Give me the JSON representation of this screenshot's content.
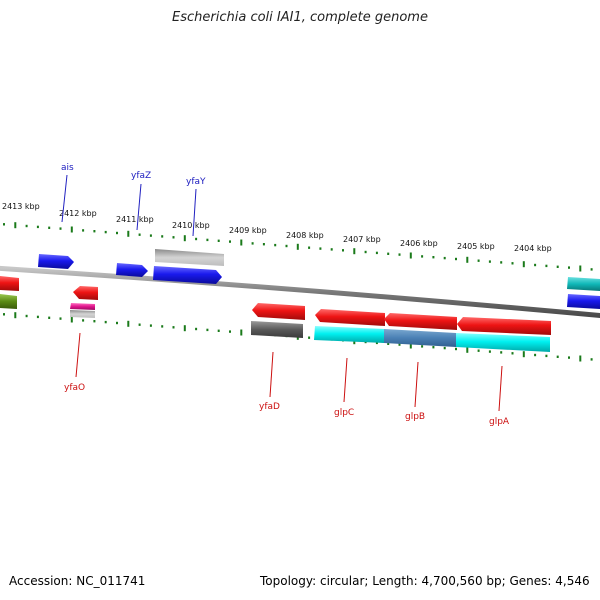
{
  "title": "Escherichia coli IAI1, complete genome",
  "footer": {
    "accession": "Accession: NC_011741",
    "topology": "Topology: circular; Length: 4,700,560 bp; Genes: 4,546"
  },
  "ticks": [
    "2413 kbp",
    "2412 kbp",
    "2411 kbp",
    "2410 kbp",
    "2409 kbp",
    "2408 kbp",
    "2407 kbp",
    "2406 kbp",
    "2405 kbp",
    "2404 kbp"
  ],
  "top_labels": [
    "ais",
    "yfaZ",
    "yfaY"
  ],
  "bottom_labels": [
    "yfaO",
    "yfaD",
    "glpC",
    "glpB",
    "glpA"
  ],
  "colors": {
    "forward_gene": "#1414e6",
    "reverse_gene": "#e81414",
    "feature_gray": "#bdbdbd",
    "feature_cyan": "#00f0f0",
    "feature_teal": "#10b8b8",
    "feature_olive": "#5a8a14",
    "feature_magenta": "#e0148c",
    "tick_green": "#1a7a1a",
    "backbone": "#808080",
    "top_label_color": "#2020c0",
    "bottom_label_color": "#cc1010"
  }
}
